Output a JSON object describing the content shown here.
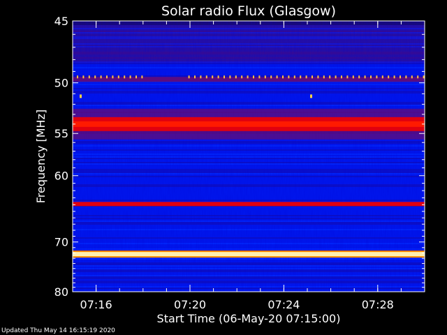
{
  "chart_data": {
    "type": "heatmap",
    "title": "Solar radio Flux (Glasgow)",
    "xlabel": "Start Time (06-May-20 07:15:00)",
    "ylabel": "Frequency [MHz]",
    "ylim": [
      45,
      80
    ],
    "ylabel_ticks": [
      {
        "value": 45,
        "label": "45"
      },
      {
        "value": 50,
        "label": "50"
      },
      {
        "value": 55,
        "label": "55"
      },
      {
        "value": 60,
        "label": "60"
      },
      {
        "value": 70,
        "label": "70"
      },
      {
        "value": 80,
        "label": "80"
      }
    ],
    "xlim": [
      "07:15:00",
      "07:30:00"
    ],
    "xlabel_ticks": [
      {
        "value": "07:16",
        "label": "07:16"
      },
      {
        "value": "07:20",
        "label": "07:20"
      },
      {
        "value": "07:24",
        "label": "07:24"
      },
      {
        "value": "07:28",
        "label": "07:28"
      }
    ],
    "bands": [
      {
        "freq_mhz": 49.6,
        "intensity": "high",
        "kind": "intermittent"
      },
      {
        "freq_mhz": 54.0,
        "intensity": "high",
        "kind": "broad"
      },
      {
        "freq_mhz": 63.9,
        "intensity": "high",
        "kind": "narrow"
      },
      {
        "freq_mhz": 72.2,
        "intensity": "saturated",
        "kind": "narrow"
      }
    ],
    "colors": {
      "low": "#0018ff",
      "mid": "#4010a0",
      "high": "#ff0000",
      "saturated": "#ffffc8"
    }
  },
  "footer": {
    "updated": "Updated Thu May 14 16:15:19 2020"
  }
}
